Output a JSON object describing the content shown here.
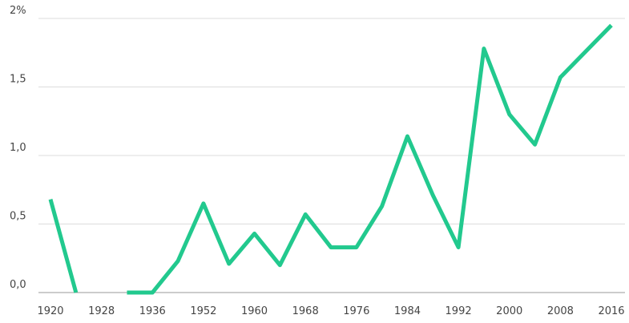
{
  "chart_data": {
    "type": "line",
    "categories": [
      "1920",
      null,
      "1928",
      null,
      "1936",
      null,
      "1952",
      null,
      "1960",
      null,
      "1968",
      null,
      "1976",
      null,
      "1984",
      null,
      "1992",
      null,
      "2000",
      null,
      "2008",
      null,
      "2016"
    ],
    "series": [
      {
        "color": "#22c98e",
        "values": [
          0.68,
          0.0,
          null,
          0.0,
          0.0,
          0.23,
          0.65,
          0.21,
          0.43,
          0.2,
          0.57,
          0.33,
          0.33,
          0.63,
          1.14,
          0.71,
          0.33,
          1.78,
          1.3,
          1.08,
          1.57,
          1.76,
          1.95
        ]
      }
    ],
    "ylim": [
      0,
      2
    ],
    "yticks": [
      {
        "value": 0,
        "label": "0,0"
      },
      {
        "value": 0.5,
        "label": "0,5"
      },
      {
        "value": 1,
        "label": "1,0"
      },
      {
        "value": 1.5,
        "label": "1,5"
      },
      {
        "value": 2,
        "label": "2%"
      }
    ],
    "grid": true
  }
}
